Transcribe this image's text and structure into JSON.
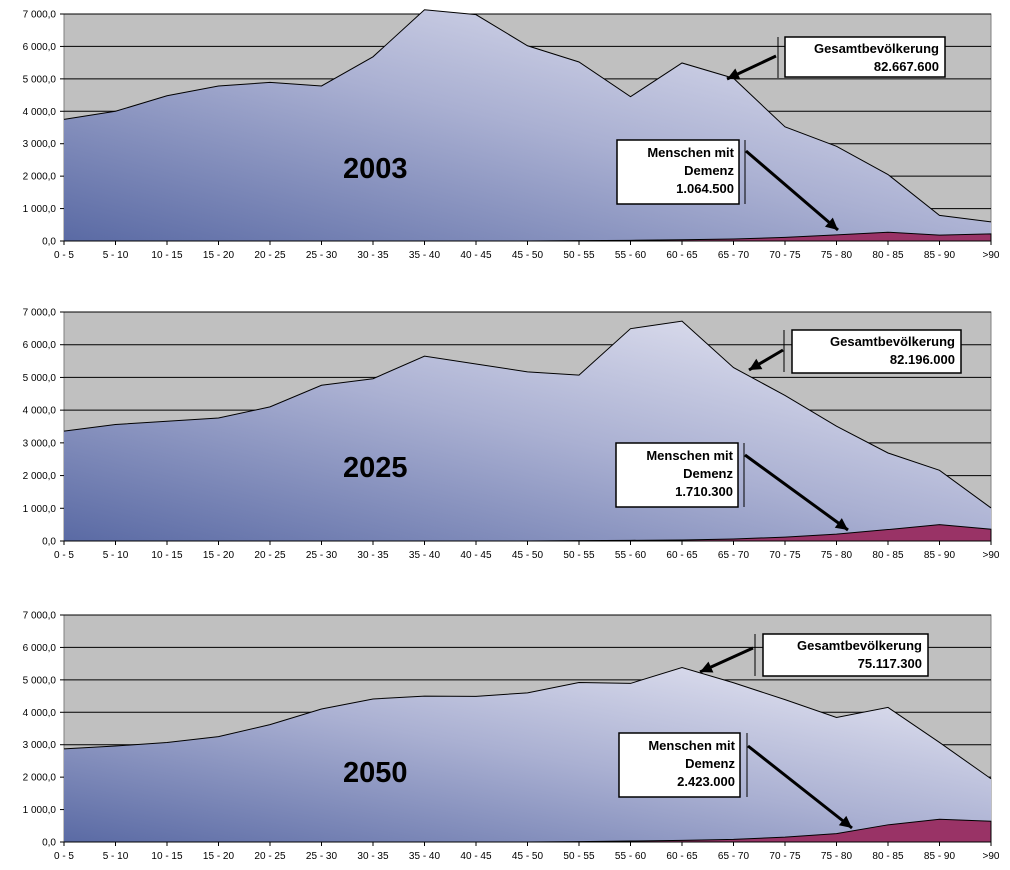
{
  "chart_data": [
    {
      "type": "area",
      "year_label": "2003",
      "categories": [
        "0 - 5",
        "5 - 10",
        "10 - 15",
        "15 - 20",
        "20 - 25",
        "25 - 30",
        "30 - 35",
        "35 - 40",
        "40 - 45",
        "45 - 50",
        "50 - 55",
        "55 - 60",
        "60 - 65",
        "65 - 70",
        "70 - 75",
        "75 - 80",
        "80 - 85",
        "85 - 90",
        ">90"
      ],
      "ylim": [
        0,
        7000
      ],
      "yticks": [
        "0,0",
        "1 000,0",
        "2 000,0",
        "3 000,0",
        "4 000,0",
        "5 000,0",
        "6 000,0",
        "7 000,0"
      ],
      "series": [
        {
          "name": "Gesamtbevölkerung",
          "total": "82.667.600",
          "color": "#e6e6f3",
          "values": [
            3750,
            4000,
            4480,
            4780,
            4890,
            4780,
            5680,
            7130,
            6980,
            6020,
            5520,
            4450,
            5490,
            5020,
            3520,
            2920,
            2050,
            790,
            590
          ]
        },
        {
          "name_lines": [
            "Menschen mit",
            "Demenz"
          ],
          "total": "1.064.500",
          "color": "#993366",
          "values": [
            0,
            0,
            0,
            0,
            0,
            0,
            0,
            0,
            0,
            0,
            10,
            20,
            40,
            60,
            110,
            190,
            270,
            180,
            220
          ]
        }
      ]
    },
    {
      "type": "area",
      "year_label": "2025",
      "categories": [
        "0 - 5",
        "5 - 10",
        "10 - 15",
        "15 - 20",
        "20 - 25",
        "25 - 30",
        "30 - 35",
        "35 - 40",
        "40 - 45",
        "45 - 50",
        "50 - 55",
        "55 - 60",
        "60 - 65",
        "65 - 70",
        "70 - 75",
        "75 - 80",
        "80 - 85",
        "85 - 90",
        ">90"
      ],
      "ylim": [
        0,
        7000
      ],
      "yticks": [
        "0,0",
        "1 000,0",
        "2 000,0",
        "3 000,0",
        "4 000,0",
        "5 000,0",
        "6 000,0",
        "7 000,0"
      ],
      "series": [
        {
          "name": "Gesamtbevölkerung",
          "total": "82.196.000",
          "color": "#e6e6f3",
          "values": [
            3360,
            3560,
            3660,
            3760,
            4100,
            4760,
            4960,
            5650,
            5410,
            5170,
            5070,
            6490,
            6720,
            5300,
            4450,
            3510,
            2690,
            2160,
            1010
          ]
        },
        {
          "name_lines": [
            "Menschen mit",
            "Demenz"
          ],
          "total": "1.710.300",
          "color": "#993366",
          "values": [
            0,
            0,
            0,
            0,
            0,
            0,
            0,
            0,
            0,
            0,
            10,
            20,
            30,
            60,
            120,
            210,
            350,
            500,
            360
          ]
        }
      ]
    },
    {
      "type": "area",
      "year_label": "2050",
      "categories": [
        "0 - 5",
        "5 - 10",
        "10 - 15",
        "15 - 20",
        "20 - 25",
        "25 - 30",
        "30 - 35",
        "35 - 40",
        "40 - 45",
        "45 - 50",
        "50 - 55",
        "55 - 60",
        "60 - 65",
        "65 - 70",
        "70 - 75",
        "75 - 80",
        "80 - 85",
        "85 - 90",
        ">90"
      ],
      "ylim": [
        0,
        7000
      ],
      "yticks": [
        "0,0",
        "1 000,0",
        "2 000,0",
        "3 000,0",
        "4 000,0",
        "5 000,0",
        "6 000,0",
        "7 000,0"
      ],
      "series": [
        {
          "name": "Gesamtbevölkerung",
          "total": "75.117.300",
          "color": "#e6e6f3",
          "values": [
            2870,
            2960,
            3070,
            3250,
            3620,
            4100,
            4410,
            4500,
            4490,
            4600,
            4920,
            4890,
            5380,
            4910,
            4390,
            3840,
            4150,
            3070,
            1950
          ]
        },
        {
          "name_lines": [
            "Menschen mit",
            "Demenz"
          ],
          "total": "2.423.000",
          "color": "#993366",
          "values": [
            0,
            0,
            0,
            0,
            0,
            0,
            0,
            0,
            0,
            0,
            10,
            30,
            50,
            80,
            150,
            260,
            530,
            700,
            640
          ]
        }
      ]
    }
  ]
}
